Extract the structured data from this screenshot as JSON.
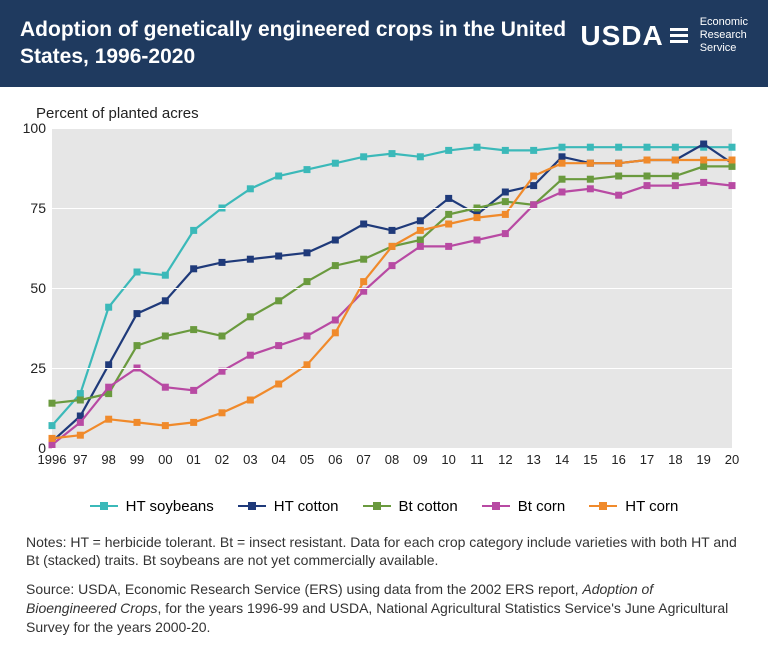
{
  "header": {
    "title": "Adoption of genetically engineered crops in the United States, 1996-2020",
    "logo_text": "USDA",
    "logo_sub1": "Economic",
    "logo_sub2": "Research",
    "logo_sub3": "Service"
  },
  "chart": {
    "type": "line",
    "y_title": "Percent of planted acres",
    "ylim": [
      0,
      100
    ],
    "ytick_step": 25,
    "yticks": [
      0,
      25,
      50,
      75,
      100
    ],
    "xticks": [
      "1996",
      "97",
      "98",
      "99",
      "00",
      "01",
      "02",
      "03",
      "04",
      "05",
      "06",
      "07",
      "08",
      "09",
      "10",
      "11",
      "12",
      "13",
      "14",
      "15",
      "16",
      "17",
      "18",
      "19",
      "20"
    ],
    "background_color": "#e6e6e6",
    "grid_color": "#ffffff",
    "axis_text_color": "#222222",
    "marker_size": 7,
    "line_width": 2.2,
    "series": [
      {
        "name": "HT soybeans",
        "color": "#3bb9b9",
        "values": [
          7,
          17,
          44,
          55,
          54,
          68,
          75,
          81,
          85,
          87,
          89,
          91,
          92,
          91,
          93,
          94,
          93,
          93,
          94,
          94,
          94,
          94,
          94,
          94,
          94
        ]
      },
      {
        "name": "HT cotton",
        "color": "#1f3a7a",
        "values": [
          2,
          10,
          26,
          42,
          46,
          56,
          58,
          59,
          60,
          61,
          65,
          70,
          68,
          71,
          78,
          73,
          80,
          82,
          91,
          89,
          89,
          90,
          90,
          95,
          89
        ]
      },
      {
        "name": "Bt cotton",
        "color": "#6a9a3e",
        "values": [
          14,
          15,
          17,
          32,
          35,
          37,
          35,
          41,
          46,
          52,
          57,
          59,
          63,
          65,
          73,
          75,
          77,
          76,
          84,
          84,
          85,
          85,
          85,
          88,
          88
        ]
      },
      {
        "name": "Bt corn",
        "color": "#b84aa3",
        "values": [
          1,
          8,
          19,
          25,
          19,
          18,
          24,
          29,
          32,
          35,
          40,
          49,
          57,
          63,
          63,
          65,
          67,
          76,
          80,
          81,
          79,
          82,
          82,
          83,
          82
        ]
      },
      {
        "name": "HT corn",
        "color": "#f08a2b",
        "values": [
          3,
          4,
          9,
          8,
          7,
          8,
          11,
          15,
          20,
          26,
          36,
          52,
          63,
          68,
          70,
          72,
          73,
          85,
          89,
          89,
          89,
          90,
          90,
          90,
          90
        ]
      }
    ]
  },
  "legend": [
    {
      "label": "HT soybeans",
      "color": "#3bb9b9"
    },
    {
      "label": "HT cotton",
      "color": "#1f3a7a"
    },
    {
      "label": "Bt cotton",
      "color": "#6a9a3e"
    },
    {
      "label": "Bt corn",
      "color": "#b84aa3"
    },
    {
      "label": "HT corn",
      "color": "#f08a2b"
    }
  ],
  "notes": {
    "text": "Notes: HT = herbicide tolerant. Bt = insect resistant. Data for each crop category include varieties with both HT and Bt (stacked) traits. Bt soybeans are not yet commercially available.",
    "source_prefix": "Source: USDA, Economic Research Service (ERS) using data from the 2002 ERS report, ",
    "source_italic": "Adoption of Bioengineered Crops",
    "source_suffix": ", for the years 1996-99 and USDA, National Agricultural Statistics Service's June Agricultural Survey for the years 2000-20."
  }
}
